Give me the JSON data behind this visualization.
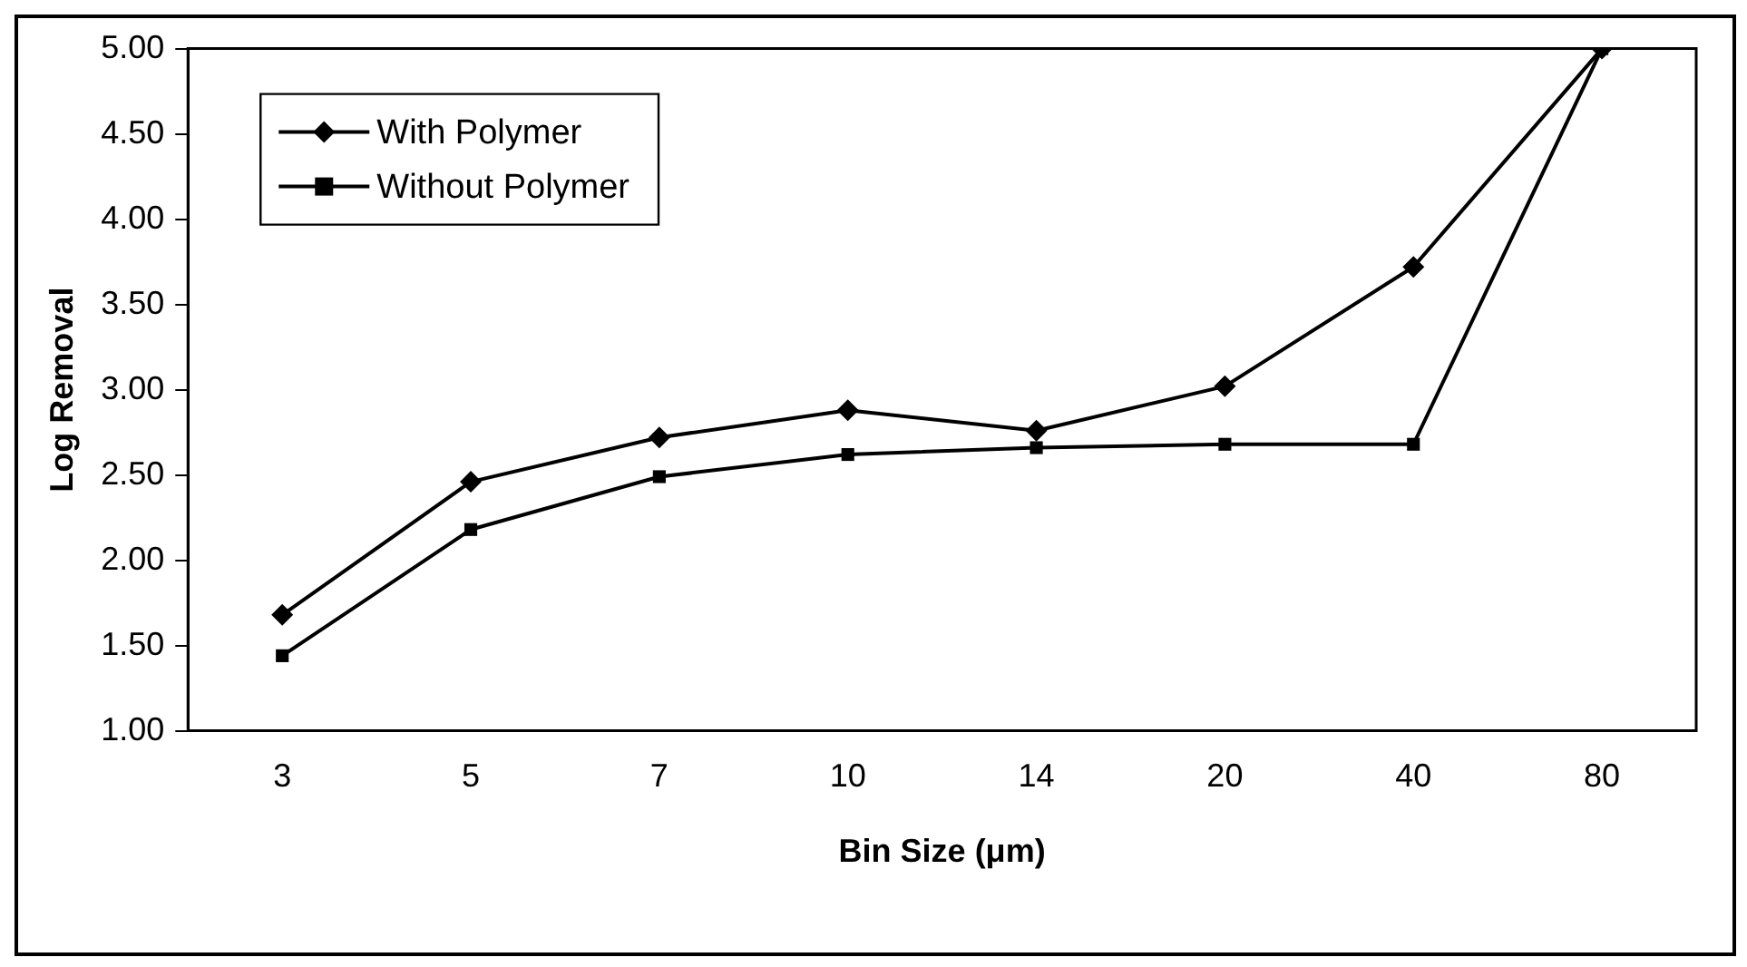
{
  "chart_data": {
    "type": "line",
    "xlabel": "Bin Size (μm)",
    "ylabel": "Log Removal",
    "categories": [
      "3",
      "5",
      "7",
      "10",
      "14",
      "20",
      "40",
      "80"
    ],
    "series": [
      {
        "name": "With Polymer",
        "color": "#000000",
        "marker": "diamond",
        "values": [
          1.68,
          2.46,
          2.72,
          2.88,
          2.76,
          3.02,
          3.72,
          5.0
        ]
      },
      {
        "name": "Without Polymer",
        "color": "#000000",
        "marker": "square",
        "values": [
          1.44,
          2.18,
          2.49,
          2.62,
          2.66,
          2.68,
          2.68,
          5.0
        ]
      }
    ],
    "ylim": [
      1,
      5
    ],
    "yticks": [
      {
        "value": 1,
        "label": "1.00"
      },
      {
        "value": 1.5,
        "label": "1.50"
      },
      {
        "value": 2,
        "label": "2.00"
      },
      {
        "value": 2.5,
        "label": "2.50"
      },
      {
        "value": 3,
        "label": "3.00"
      },
      {
        "value": 3.5,
        "label": "3.50"
      },
      {
        "value": 4,
        "label": "4.00"
      },
      {
        "value": 4.5,
        "label": "4.50"
      },
      {
        "value": 5,
        "label": "5.00"
      }
    ],
    "grid": false,
    "legend": "top left",
    "line_style": "solid"
  }
}
